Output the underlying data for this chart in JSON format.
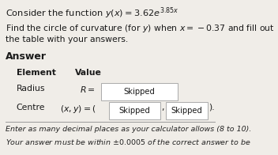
{
  "bg_color": "#f0ede8",
  "title_line1": "Consider the function $y(x) = 3.62e^{3.85x}$",
  "body_line1": "Find the circle of curvature (for $y$) when $x = -0.37$ and fill out",
  "body_line2": "the table with your answers.",
  "answer_label": "Answer",
  "col1_header": "Element",
  "col2_header": "Value",
  "row1_label": "Radius",
  "row1_formula": "$R =$",
  "row1_box": "Skipped",
  "row2_label": "Centre",
  "row2_formula": "$(x, y) = ($",
  "row2_box1": "Skipped",
  "row2_sep": ",",
  "row2_box2": "Skipped",
  "row2_close": ").",
  "footer_line1": "Enter as many decimal places as your calculator allows (8 to 10).",
  "footer_line2": "Your answer must be within $\\pm 0.0005$ of the correct answer to be",
  "box_color": "#ffffff",
  "box_edge_color": "#aaaaaa",
  "text_color": "#1a1a1a",
  "footer_color": "#222222"
}
